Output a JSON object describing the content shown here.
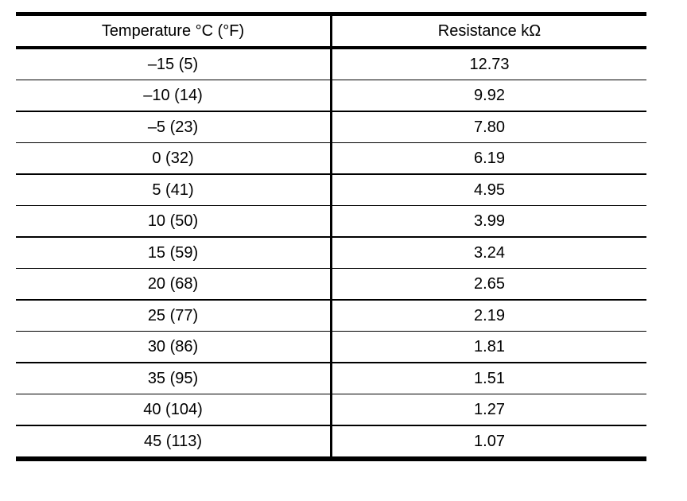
{
  "page": {
    "background": "#ffffff"
  },
  "colors": {
    "border": "#000000",
    "text": "#000000",
    "cell_background": "#ffffff"
  },
  "table": {
    "columns": [
      {
        "key": "temperature",
        "label": "Temperature °C (°F)"
      },
      {
        "key": "resistance",
        "label": "Resistance kΩ"
      }
    ],
    "rows": [
      {
        "temperature": "–15 (5)",
        "resistance": "12.73"
      },
      {
        "temperature": "–10 (14)",
        "resistance": "9.92"
      },
      {
        "temperature": "–5 (23)",
        "resistance": "7.80"
      },
      {
        "temperature": "0 (32)",
        "resistance": "6.19"
      },
      {
        "temperature": "5 (41)",
        "resistance": "4.95"
      },
      {
        "temperature": "10 (50)",
        "resistance": "3.99"
      },
      {
        "temperature": "15 (59)",
        "resistance": "3.24"
      },
      {
        "temperature": "20 (68)",
        "resistance": "2.65"
      },
      {
        "temperature": "25 (77)",
        "resistance": "2.19"
      },
      {
        "temperature": "30 (86)",
        "resistance": "1.81"
      },
      {
        "temperature": "35 (95)",
        "resistance": "1.51"
      },
      {
        "temperature": "40 (104)",
        "resistance": "1.27"
      },
      {
        "temperature": "45 (113)",
        "resistance": "1.07"
      }
    ]
  },
  "chart_data": {
    "type": "table",
    "columns": [
      "Temperature °C (°F)",
      "Resistance kΩ"
    ],
    "temperature_c": [
      -15,
      -10,
      -5,
      0,
      5,
      10,
      15,
      20,
      25,
      30,
      35,
      40,
      45
    ],
    "temperature_f": [
      5,
      14,
      23,
      32,
      41,
      50,
      59,
      68,
      77,
      86,
      95,
      104,
      113
    ],
    "resistance_kohm": [
      12.73,
      9.92,
      7.8,
      6.19,
      4.95,
      3.99,
      3.24,
      2.65,
      2.19,
      1.81,
      1.51,
      1.27,
      1.07
    ]
  }
}
